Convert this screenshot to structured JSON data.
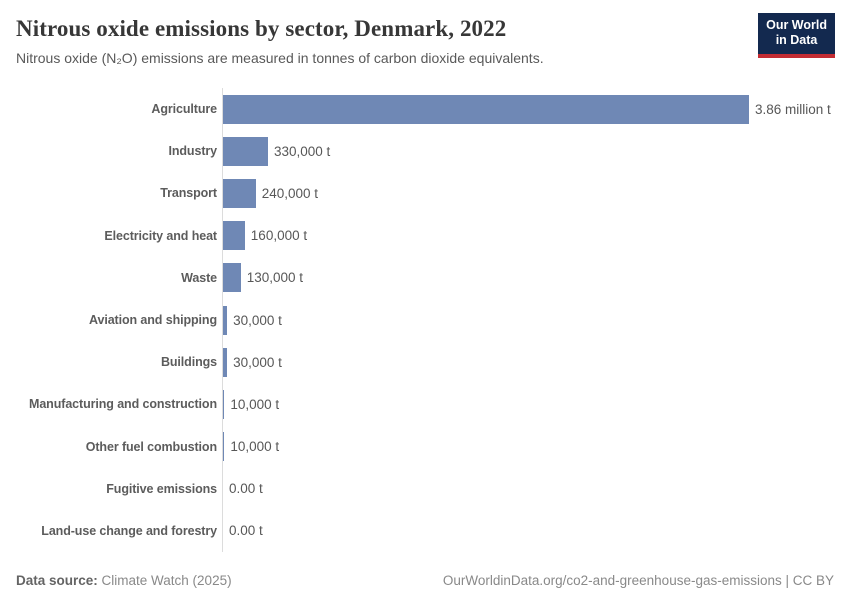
{
  "header": {
    "title": "Nitrous oxide emissions by sector, Denmark, 2022",
    "subtitle": "Nitrous oxide (N₂O) emissions are measured in tonnes of carbon dioxide equivalents."
  },
  "logo": {
    "line1": "Our World",
    "line2": "in Data",
    "background_color": "#13294f",
    "accent_color": "#c32c33"
  },
  "chart_data": {
    "type": "bar",
    "orientation": "horizontal",
    "title": "Nitrous oxide emissions by sector, Denmark, 2022",
    "subtitle": "Nitrous oxide (N₂O) emissions are measured in tonnes of carbon dioxide equivalents.",
    "unit": "tonnes of CO₂ equivalents",
    "categories": [
      "Agriculture",
      "Industry",
      "Transport",
      "Electricity and heat",
      "Waste",
      "Aviation and shipping",
      "Buildings",
      "Manufacturing and construction",
      "Other fuel combustion",
      "Fugitive emissions",
      "Land-use change and forestry"
    ],
    "values": [
      3860000,
      330000,
      240000,
      160000,
      130000,
      30000,
      30000,
      10000,
      10000,
      0,
      0
    ],
    "value_labels": [
      "3.86 million t",
      "330,000 t",
      "240,000 t",
      "160,000 t",
      "130,000 t",
      "30,000 t",
      "30,000 t",
      "10,000 t",
      "10,000 t",
      "0.00 t",
      "0.00 t"
    ],
    "xlim": [
      0,
      3860000
    ],
    "grid": false,
    "axis_ticks_visible": false,
    "bar_color": "#6f88b5",
    "legend_position": "none"
  },
  "footer": {
    "data_source_label": "Data source:",
    "data_source_value": " Climate Watch (2025)",
    "link_text": "OurWorldinData.org/co2-and-greenhouse-gas-emissions | CC BY"
  }
}
